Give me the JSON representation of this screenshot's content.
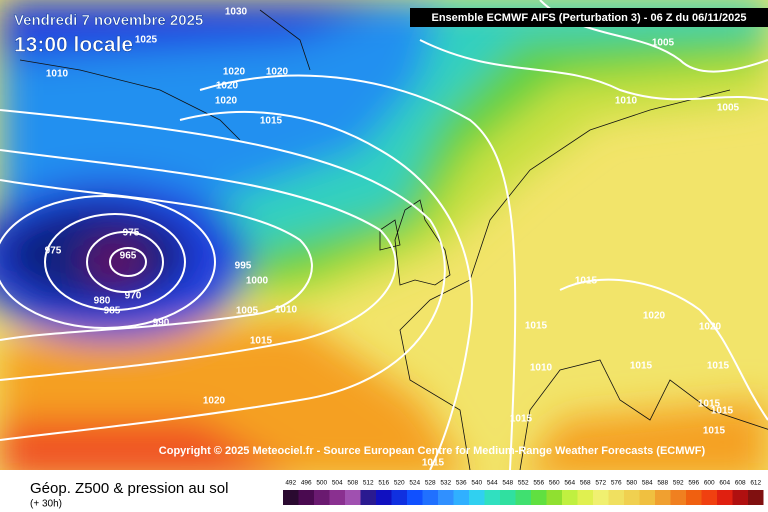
{
  "header": {
    "date": "Vendredi 7 novembre 2025",
    "local_time": "13:00 locale",
    "model": "Ensemble ECMWF AIFS  (Perturbation 3)  -  06 Z du 06/11/2025"
  },
  "copyright": "Copyright © 2025 Meteociel.fr - Source European Centre for Medium-Range Weather Forecasts (ECMWF)",
  "footer": {
    "title": "Géop. Z500 & pression au sol",
    "lead": "(+ 30h)"
  },
  "isobar_labels": [
    "1030",
    "1025",
    "1010",
    "1020",
    "1020",
    "1020",
    "1020",
    "1015",
    "1005",
    "1010",
    "1005",
    "975",
    "975",
    "965",
    "970",
    "980",
    "985",
    "990",
    "995",
    "1000",
    "1005",
    "1010",
    "1015",
    "1020",
    "1015",
    "1015",
    "1020",
    "1020",
    "1010",
    "1015",
    "1015",
    "1015",
    "1015",
    "1015",
    "1015",
    "1015"
  ],
  "legend": {
    "labels": [
      492,
      496,
      500,
      504,
      508,
      512,
      516,
      520,
      524,
      528,
      532,
      536,
      540,
      544,
      548,
      552,
      556,
      560,
      564,
      568,
      572,
      576,
      580,
      584,
      588,
      592,
      596,
      600,
      604,
      608,
      612
    ],
    "colors": [
      "#2a0a30",
      "#4a0a50",
      "#6a1a70",
      "#8a3090",
      "#a050b0",
      "#2a1a90",
      "#1010c0",
      "#1030e0",
      "#1050ff",
      "#2070ff",
      "#3090ff",
      "#30b0ff",
      "#30d0f0",
      "#30e0c0",
      "#30e0a0",
      "#40e070",
      "#60e040",
      "#90e030",
      "#c0f040",
      "#e0f050",
      "#f0f070",
      "#f0e060",
      "#f0d050",
      "#f0c040",
      "#f0a030",
      "#f08020",
      "#f06010",
      "#f04010",
      "#e02010",
      "#b01010",
      "#801010"
    ]
  }
}
